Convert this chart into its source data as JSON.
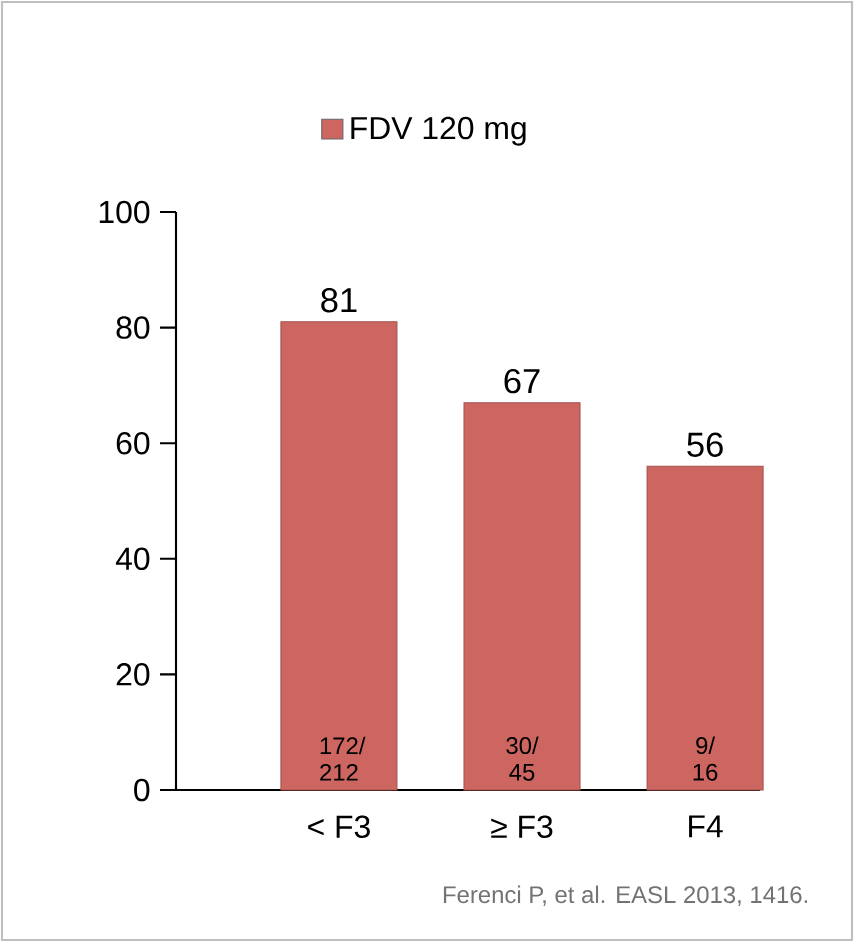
{
  "chart_data": {
    "type": "bar",
    "categories": [
      "< F3",
      "≥ F3",
      "F4"
    ],
    "series": [
      {
        "name": "FDV 120 mg",
        "color": "#cd6660",
        "values": [
          81,
          67,
          56
        ]
      }
    ],
    "ylim": [
      0,
      100
    ],
    "yticks": [
      0,
      20,
      40,
      60,
      80,
      100
    ],
    "grid": false,
    "legend": "top",
    "data_labels": true,
    "annotations": [
      "172/ 212",
      "30/ 45",
      "9/ 16",
      "Ferenci P, et al. EASL 2013, 1416."
    ]
  }
}
